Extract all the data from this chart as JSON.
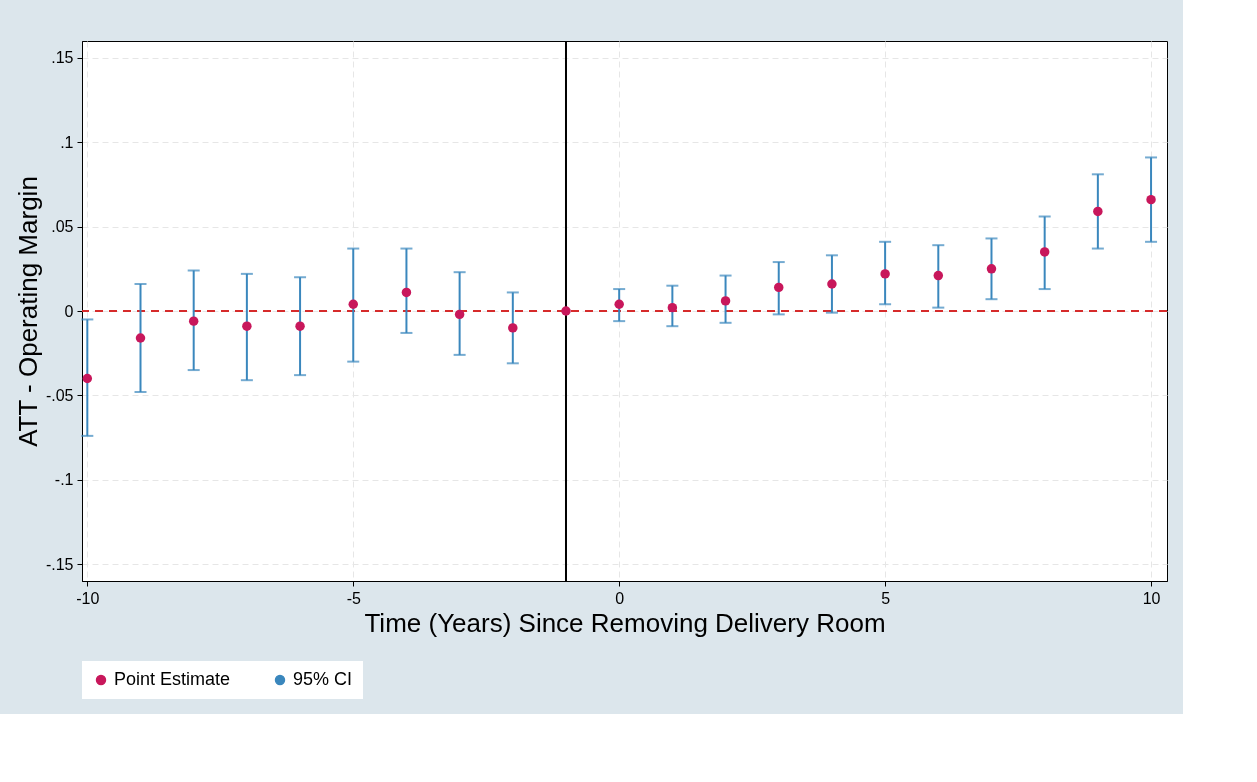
{
  "chart_data": {
    "type": "scatter",
    "xlabel": "Time (Years) Since Removing Delivery Room",
    "ylabel": "ATT - Operating Margin",
    "x": [
      -10,
      -9,
      -8,
      -7,
      -6,
      -5,
      -4,
      -3,
      -2,
      -1,
      0,
      1,
      2,
      3,
      4,
      5,
      6,
      7,
      8,
      9,
      10
    ],
    "series": [
      {
        "name": "Point Estimate",
        "color": "#c8175b",
        "values": [
          -0.04,
          -0.016,
          -0.006,
          -0.009,
          -0.009,
          0.004,
          0.011,
          -0.002,
          -0.01,
          0.0,
          0.004,
          0.002,
          0.006,
          0.014,
          0.016,
          0.022,
          0.021,
          0.025,
          0.035,
          0.059,
          0.066
        ],
        "errors": [
          [
            -0.074,
            -0.005
          ],
          [
            -0.048,
            0.016
          ],
          [
            -0.035,
            0.024
          ],
          [
            -0.041,
            0.022
          ],
          [
            -0.038,
            0.02
          ],
          [
            -0.03,
            0.037
          ],
          [
            -0.013,
            0.037
          ],
          [
            -0.026,
            0.023
          ],
          [
            -0.031,
            0.011
          ],
          null,
          [
            -0.006,
            0.013
          ],
          [
            -0.009,
            0.015
          ],
          [
            -0.007,
            0.021
          ],
          [
            -0.002,
            0.029
          ],
          [
            -0.001,
            0.033
          ],
          [
            0.004,
            0.041
          ],
          [
            0.002,
            0.039
          ],
          [
            0.007,
            0.043
          ],
          [
            0.013,
            0.056
          ],
          [
            0.037,
            0.081
          ],
          [
            0.041,
            0.091
          ]
        ]
      },
      {
        "name": "95% CI",
        "color": "#3a87bd",
        "values": [
          null,
          null,
          null,
          null,
          null,
          null,
          null,
          null,
          null,
          null,
          null,
          null,
          null,
          null,
          null,
          null,
          null,
          null,
          null,
          null,
          null
        ]
      }
    ],
    "xlim": [
      -10.1,
      10.3
    ],
    "xticks": [
      -10,
      -5,
      0,
      5,
      10
    ],
    "ylim": [
      -0.16,
      0.16
    ],
    "yticks": [
      {
        "value": -0.15,
        "label": "-.15"
      },
      {
        "value": -0.1,
        "label": "-.1"
      },
      {
        "value": -0.05,
        "label": "-.05"
      },
      0,
      {
        "value": 0.05,
        "label": ".05"
      },
      {
        "value": 0.1,
        "label": ".1"
      },
      {
        "value": 0.15,
        "label": ".15"
      }
    ],
    "ref_lines": [
      {
        "axis": "y",
        "value": 0,
        "color": "#d62b2b",
        "line_style": "dashed"
      },
      {
        "axis": "x",
        "value": -1,
        "color": "#000000",
        "line_style": "solid"
      }
    ],
    "grid": true,
    "legend": "bottom",
    "marker": "circle"
  }
}
